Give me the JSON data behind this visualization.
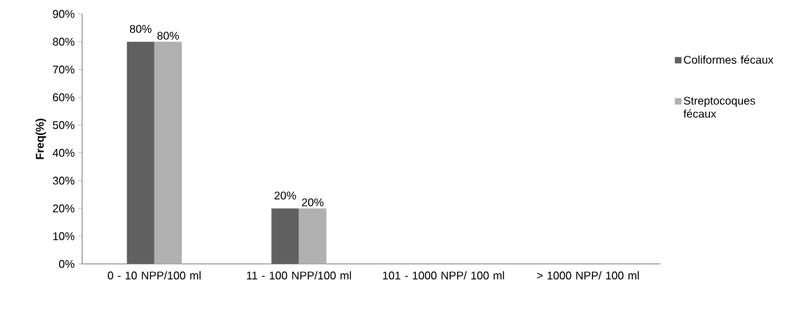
{
  "chart_data": {
    "type": "bar",
    "ylabel": "Freq(%)",
    "categories": [
      "0 - 10 NPP/100 ml",
      "11 - 100 NPP/100 ml",
      "101 - 1000 NPP/ 100 ml",
      "> 1000 NPP/ 100 ml"
    ],
    "series": [
      {
        "name": "Coliformes fécaux",
        "color": "#606060",
        "values": [
          80,
          20,
          0,
          0
        ],
        "value_labels": [
          "80%",
          "20%",
          null,
          null
        ]
      },
      {
        "name": "Streptocoques fécaux",
        "color": "#b0b0b0",
        "values": [
          80,
          20,
          0,
          0
        ],
        "value_labels": [
          "80%",
          "20%",
          null,
          null
        ]
      }
    ],
    "ylim": [
      0,
      90
    ],
    "yticks": [
      {
        "value": 0,
        "label": "0%"
      },
      {
        "value": 10,
        "label": "10%"
      },
      {
        "value": 20,
        "label": "20%"
      },
      {
        "value": 30,
        "label": "30%"
      },
      {
        "value": 40,
        "label": "40%"
      },
      {
        "value": 50,
        "label": "50%"
      },
      {
        "value": 60,
        "label": "60%"
      },
      {
        "value": 70,
        "label": "70%"
      },
      {
        "value": 80,
        "label": "80%"
      },
      {
        "value": 90,
        "label": "90%"
      }
    ],
    "legend": "right",
    "grid": false
  }
}
